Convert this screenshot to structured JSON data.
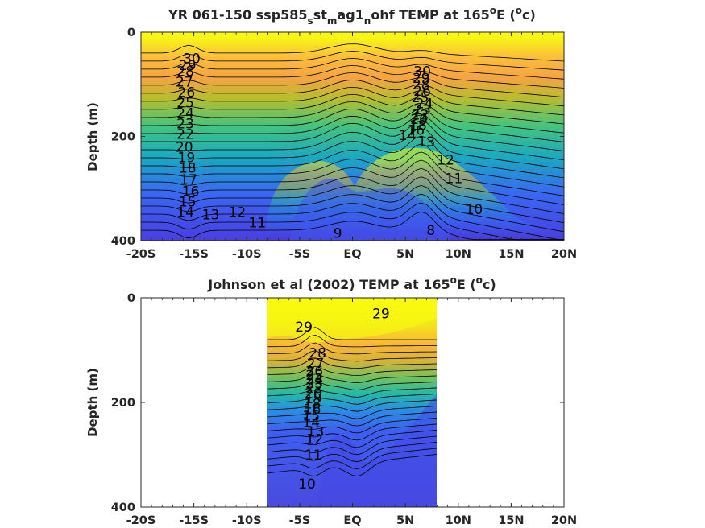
{
  "chart_data": [
    {
      "type": "contour",
      "title": "YR 061-150 ssp585",
      "title_parts": {
        "pre": "YR 061-150 ssp585",
        "sub1": "s",
        "mid1": "st",
        "sub2": "m",
        "mid2": "ag1",
        "sub3": "n",
        "post": "ohf TEMP at 165",
        "sup1": "o",
        "post2": "E (",
        "sup2": "o",
        "post3": "c)"
      },
      "xlabel": "",
      "ylabel": "Depth (m)",
      "x_ticks": [
        "-20S",
        "-15S",
        "-10S",
        "-5S",
        "EQ",
        "5N",
        "10N",
        "15N",
        "20N"
      ],
      "x_tick_values": [
        -20,
        -15,
        -10,
        -5,
        0,
        5,
        10,
        15,
        20
      ],
      "y_ticks": [
        "0",
        "200",
        "400"
      ],
      "y_tick_values": [
        0,
        200,
        400
      ],
      "xlim": [
        -20,
        20
      ],
      "ylim": [
        400,
        0
      ],
      "data_extent_lat": [
        -20,
        20
      ],
      "contour_levels": [
        8,
        9,
        10,
        11,
        12,
        13,
        14,
        15,
        16,
        17,
        18,
        19,
        20,
        21,
        22,
        23,
        24,
        25,
        26,
        27,
        28,
        29,
        30
      ],
      "labels": [
        {
          "text": "30",
          "lat": -15.2,
          "depth": 50
        },
        {
          "text": "29",
          "lat": -15.6,
          "depth": 63
        },
        {
          "text": "28",
          "lat": -15.8,
          "depth": 75
        },
        {
          "text": "27",
          "lat": -15.9,
          "depth": 95
        },
        {
          "text": "26",
          "lat": -15.7,
          "depth": 115
        },
        {
          "text": "25",
          "lat": -15.8,
          "depth": 135
        },
        {
          "text": "24",
          "lat": -15.8,
          "depth": 155
        },
        {
          "text": "23",
          "lat": -15.8,
          "depth": 175
        },
        {
          "text": "22",
          "lat": -15.8,
          "depth": 195
        },
        {
          "text": "20",
          "lat": -15.9,
          "depth": 220
        },
        {
          "text": "19",
          "lat": -15.7,
          "depth": 240
        },
        {
          "text": "18",
          "lat": -15.6,
          "depth": 260
        },
        {
          "text": "17",
          "lat": -15.5,
          "depth": 283
        },
        {
          "text": "16",
          "lat": -15.3,
          "depth": 305
        },
        {
          "text": "15",
          "lat": -15.6,
          "depth": 325
        },
        {
          "text": "14",
          "lat": -15.8,
          "depth": 345
        },
        {
          "text": "13",
          "lat": -13.4,
          "depth": 350
        },
        {
          "text": "12",
          "lat": -10.9,
          "depth": 345
        },
        {
          "text": "11",
          "lat": -9.0,
          "depth": 365
        },
        {
          "text": "9",
          "lat": -1.4,
          "depth": 385
        },
        {
          "text": "8",
          "lat": 7.4,
          "depth": 380
        },
        {
          "text": "30",
          "lat": 6.6,
          "depth": 75
        },
        {
          "text": "29",
          "lat": 6.5,
          "depth": 88
        },
        {
          "text": "28",
          "lat": 6.5,
          "depth": 100
        },
        {
          "text": "26",
          "lat": 6.6,
          "depth": 113
        },
        {
          "text": "25",
          "lat": 6.4,
          "depth": 125
        },
        {
          "text": "24",
          "lat": 6.8,
          "depth": 137
        },
        {
          "text": "23",
          "lat": 6.6,
          "depth": 148
        },
        {
          "text": "22",
          "lat": 6.4,
          "depth": 158
        },
        {
          "text": "20",
          "lat": 6.3,
          "depth": 167
        },
        {
          "text": "18",
          "lat": 6.2,
          "depth": 178
        },
        {
          "text": "16",
          "lat": 6.0,
          "depth": 188
        },
        {
          "text": "14",
          "lat": 5.2,
          "depth": 198
        },
        {
          "text": "13",
          "lat": 7.0,
          "depth": 210
        },
        {
          "text": "12",
          "lat": 8.8,
          "depth": 245
        },
        {
          "text": "11",
          "lat": 9.6,
          "depth": 280
        },
        {
          "text": "10",
          "lat": 11.5,
          "depth": 340
        }
      ]
    },
    {
      "type": "contour",
      "title": "Johnson et al (2002) TEMP at 165",
      "title_parts": {
        "pre": "Johnson et al (2002) TEMP at 165",
        "sup1": "o",
        "post2": "E (",
        "sup2": "o",
        "post3": "c)"
      },
      "xlabel": "",
      "ylabel": "Depth (m)",
      "x_ticks": [
        "-20S",
        "-15S",
        "-10S",
        "-5S",
        "EQ",
        "5N",
        "10N",
        "15N",
        "20N"
      ],
      "x_tick_values": [
        -20,
        -15,
        -10,
        -5,
        0,
        5,
        10,
        15,
        20
      ],
      "y_ticks": [
        "0",
        "200",
        "400"
      ],
      "y_tick_values": [
        0,
        200,
        400
      ],
      "xlim": [
        -20,
        20
      ],
      "ylim": [
        400,
        0
      ],
      "data_extent_lat": [
        -8,
        8
      ],
      "contour_levels": [
        10,
        11,
        12,
        13,
        14,
        15,
        16,
        17,
        18,
        19,
        20,
        21,
        22,
        23,
        24,
        25,
        26,
        27,
        28,
        29
      ],
      "labels": [
        {
          "text": "29",
          "lat": 2.7,
          "depth": 30
        },
        {
          "text": "29",
          "lat": -4.6,
          "depth": 55
        },
        {
          "text": "28",
          "lat": -3.3,
          "depth": 105
        },
        {
          "text": "27",
          "lat": -3.5,
          "depth": 125
        },
        {
          "text": "26",
          "lat": -3.6,
          "depth": 140
        },
        {
          "text": "25",
          "lat": -3.6,
          "depth": 148
        },
        {
          "text": "24",
          "lat": -3.6,
          "depth": 155
        },
        {
          "text": "23",
          "lat": -3.6,
          "depth": 163
        },
        {
          "text": "22",
          "lat": -3.6,
          "depth": 172
        },
        {
          "text": "20",
          "lat": -3.7,
          "depth": 182
        },
        {
          "text": "19",
          "lat": -3.7,
          "depth": 192
        },
        {
          "text": "18",
          "lat": -3.8,
          "depth": 202
        },
        {
          "text": "16",
          "lat": -3.8,
          "depth": 212
        },
        {
          "text": "15",
          "lat": -3.9,
          "depth": 225
        },
        {
          "text": "14",
          "lat": -3.9,
          "depth": 238
        },
        {
          "text": "13",
          "lat": -3.5,
          "depth": 255
        },
        {
          "text": "12",
          "lat": -3.6,
          "depth": 270
        },
        {
          "text": "11",
          "lat": -3.7,
          "depth": 300
        },
        {
          "text": "10",
          "lat": -4.3,
          "depth": 355
        }
      ]
    }
  ]
}
